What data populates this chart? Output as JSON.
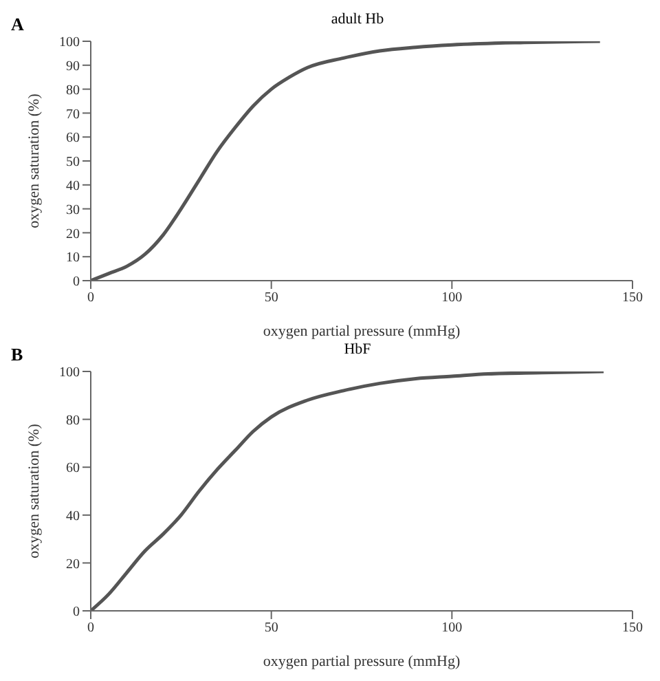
{
  "chart_data": [
    {
      "type": "line",
      "title": "adult Hb",
      "xlabel": "oxygen partial pressure (mmHg)",
      "ylabel": "oxygen saturation (%)",
      "annotations": [
        "A"
      ],
      "x": [
        0,
        5,
        10,
        15,
        20,
        25,
        30,
        35,
        40,
        45,
        50,
        55,
        60,
        70,
        80,
        90,
        100,
        120,
        141
      ],
      "series": [
        {
          "color": "#555555",
          "values": [
            0,
            3,
            6,
            11,
            19,
            30,
            42,
            54,
            64,
            73,
            80,
            85,
            89,
            93,
            96,
            97.5,
            98.5,
            99.5,
            100
          ]
        }
      ],
      "xlim": [
        0,
        150
      ],
      "xticks": [
        0,
        50,
        100,
        150
      ],
      "ylim": [
        0,
        100
      ],
      "yticks": [
        0,
        10,
        20,
        30,
        40,
        50,
        60,
        70,
        80,
        90,
        100
      ],
      "grid": false,
      "marker": "none",
      "line_style": "solid"
    },
    {
      "type": "line",
      "title": "HbF",
      "xlabel": "oxygen partial pressure (mmHg)",
      "ylabel": "oxygen saturation (%)",
      "annotations": [
        "B"
      ],
      "x": [
        0,
        5,
        10,
        15,
        20,
        25,
        30,
        35,
        40,
        45,
        50,
        60,
        70,
        80,
        90,
        100,
        110,
        125,
        142
      ],
      "series": [
        {
          "color": "#555555",
          "values": [
            0,
            7,
            16,
            25,
            32,
            40,
            50,
            59,
            67,
            75,
            81,
            88,
            92,
            95,
            97,
            98,
            99,
            99.5,
            100
          ]
        }
      ],
      "xlim": [
        0,
        150
      ],
      "xticks": [
        0,
        50,
        100,
        150
      ],
      "ylim": [
        0,
        100
      ],
      "yticks": [
        0,
        20,
        40,
        60,
        80,
        100
      ],
      "grid": false,
      "marker": "none",
      "line_style": "solid"
    }
  ]
}
